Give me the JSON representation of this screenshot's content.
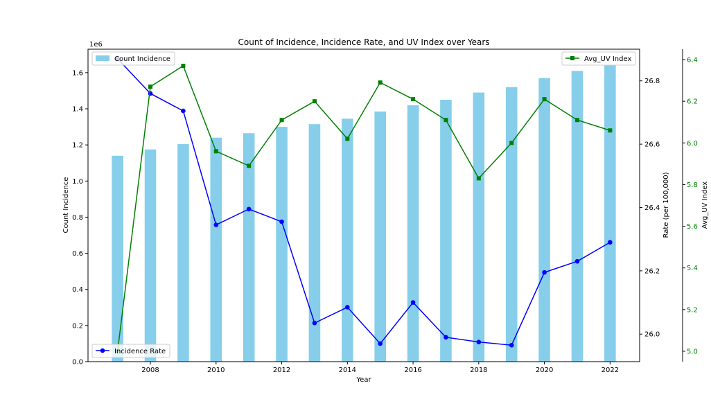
{
  "chart_data": {
    "type": "bar",
    "title": "Count of Incidence, Incidence Rate, and UV Index over Years",
    "xlabel": "Year",
    "ylabel_left": "Count Incidence",
    "ylabel_right1": "Rate (per 100,000)",
    "ylabel_right2": "Avg_UV Index",
    "left_offset_label": "1e6",
    "x": [
      2007,
      2008,
      2009,
      2010,
      2011,
      2012,
      2013,
      2014,
      2015,
      2016,
      2017,
      2018,
      2019,
      2020,
      2021,
      2022
    ],
    "xlim": [
      2006.1,
      2022.9
    ],
    "x_ticks": [
      2008,
      2010,
      2012,
      2014,
      2016,
      2018,
      2020,
      2022
    ],
    "left_axis": {
      "lim": [
        0,
        1.73
      ],
      "ticks": [
        0.0,
        0.2,
        0.4,
        0.6,
        0.8,
        1.0,
        1.2,
        1.4,
        1.6
      ],
      "tick_labels": [
        "0.0",
        "0.2",
        "0.4",
        "0.6",
        "0.8",
        "1.0",
        "1.2",
        "1.4",
        "1.6"
      ]
    },
    "right1_axis": {
      "lim": [
        25.913,
        26.9
      ],
      "ticks": [
        26.0,
        26.2,
        26.4,
        26.6,
        26.8
      ],
      "tick_labels": [
        "26.0",
        "26.2",
        "26.4",
        "26.6",
        "26.8"
      ]
    },
    "right2_axis": {
      "lim": [
        4.95,
        6.45
      ],
      "ticks": [
        5.0,
        5.2,
        5.4,
        5.6,
        5.8,
        6.0,
        6.2,
        6.4
      ],
      "tick_labels": [
        "5.0",
        "5.2",
        "5.4",
        "5.6",
        "5.8",
        "6.0",
        "6.2",
        "6.4"
      ]
    },
    "series": [
      {
        "name": "Count Incidence",
        "type": "bar",
        "axis": "left",
        "color": "#87ceeb",
        "values": [
          1.14,
          1.175,
          1.205,
          1.24,
          1.265,
          1.3,
          1.315,
          1.345,
          1.385,
          1.42,
          1.45,
          1.49,
          1.52,
          1.57,
          1.61,
          1.64
        ]
      },
      {
        "name": "Incidence Rate",
        "type": "line",
        "axis": "right1",
        "color": "#0000ff",
        "marker": "circle",
        "values": [
          26.87,
          26.76,
          26.705,
          26.345,
          26.395,
          26.355,
          26.035,
          26.085,
          25.97,
          26.1,
          25.99,
          25.975,
          25.965,
          26.195,
          26.23,
          26.29
        ]
      },
      {
        "name": "Avg_UV Index",
        "type": "line",
        "axis": "right2",
        "color": "#008000",
        "marker": "square",
        "values": [
          5.0,
          6.27,
          6.37,
          5.96,
          5.89,
          6.11,
          6.2,
          6.02,
          6.29,
          6.21,
          6.11,
          5.83,
          6.0,
          6.21,
          6.11,
          6.06
        ]
      }
    ],
    "legends": [
      {
        "position": "upper-left",
        "items": [
          "Count Incidence"
        ]
      },
      {
        "position": "upper-right",
        "items": [
          "Avg_UV Index"
        ]
      },
      {
        "position": "lower-left",
        "items": [
          "Incidence Rate"
        ]
      }
    ],
    "grid": false
  }
}
